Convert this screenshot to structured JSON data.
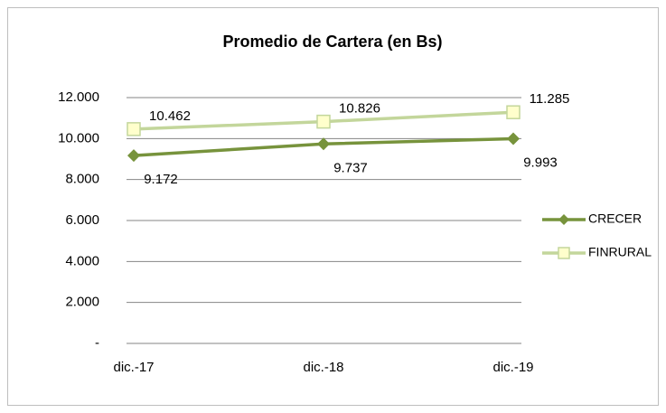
{
  "chart_data": {
    "type": "line",
    "title": "Promedio de Cartera (en Bs)",
    "categories": [
      "dic.-17",
      "dic.-18",
      "dic.-19"
    ],
    "series": [
      {
        "name": "CRECER",
        "color": "#77933c",
        "values": [
          9172,
          9737,
          9993
        ],
        "value_labels": [
          "9.172",
          "9.737",
          "9.993"
        ]
      },
      {
        "name": "FINRURAL",
        "color": "#c3d69b",
        "marker_fill": "#ffffcc",
        "values": [
          10462,
          10826,
          11285
        ],
        "value_labels": [
          "10.462",
          "10.826",
          "11.285"
        ]
      }
    ],
    "ylim": [
      0,
      12000
    ],
    "yticks": [
      {
        "value": 0,
        "label": "-"
      },
      {
        "value": 2000,
        "label": "2.000"
      },
      {
        "value": 4000,
        "label": "4.000"
      },
      {
        "value": 6000,
        "label": "6.000"
      },
      {
        "value": 8000,
        "label": "8.000"
      },
      {
        "value": 10000,
        "label": "10.000"
      },
      {
        "value": 12000,
        "label": "12.000"
      }
    ],
    "grid": true,
    "legend": "right"
  }
}
